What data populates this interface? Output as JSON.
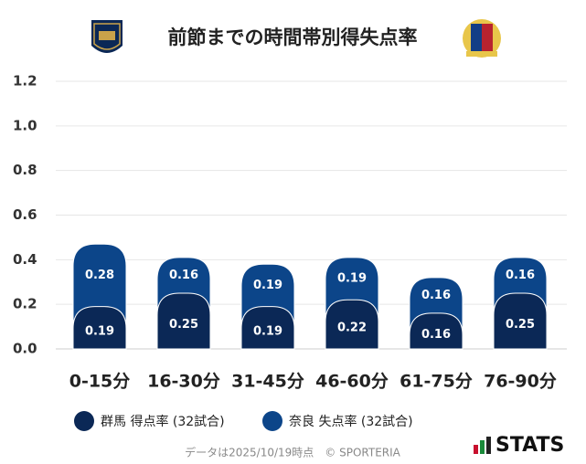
{
  "chart_data": {
    "type": "stacked-bar",
    "title": "前節までの時間帯別得失点率",
    "categories": [
      "0-15分",
      "16-30分",
      "31-45分",
      "46-60分",
      "61-75分",
      "76-90分"
    ],
    "series": [
      {
        "name": "群馬 得点率 (32試合)",
        "color": "#0b2856",
        "values": [
          0.19,
          0.25,
          0.19,
          0.22,
          0.16,
          0.25
        ]
      },
      {
        "name": "奈良 失点率 (32試合)",
        "color": "#0c4589",
        "values": [
          0.28,
          0.16,
          0.19,
          0.19,
          0.16,
          0.16
        ]
      }
    ],
    "ylim": [
      0,
      1.2
    ],
    "yticks": [
      {
        "value": 0,
        "label": "0.0"
      },
      0.2,
      0.4,
      0.6,
      0.8,
      {
        "value": 1,
        "label": "1.0"
      },
      1.2
    ],
    "grid": true,
    "footer": "データは2025/10/19時点　© SPORTERIA",
    "brand": "STATS"
  }
}
